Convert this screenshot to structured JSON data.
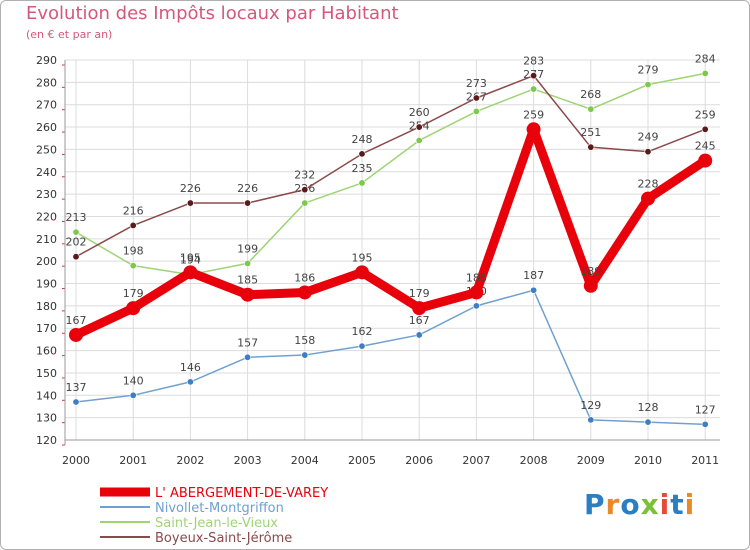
{
  "title": "Evolution des Impôts locaux par Habitant",
  "subtitle": "(en € et par an)",
  "logo_text": "Proxiti",
  "chart_data": {
    "type": "line",
    "title": "Evolution des Impôts locaux par Habitant",
    "subtitle": "(en € et par an)",
    "xlabel": "",
    "ylabel": "",
    "ylim": [
      120,
      290
    ],
    "ytick_step": 10,
    "grid": true,
    "categories": [
      "2000",
      "2001",
      "2002",
      "2003",
      "2004",
      "2005",
      "2006",
      "2007",
      "2008",
      "2009",
      "2010",
      "2011"
    ],
    "series": [
      {
        "name": "L' ABERGEMENT-DE-VAREY",
        "color": "#e8000b",
        "emphasis": true,
        "values": [
          167,
          179,
          195,
          185,
          186,
          195,
          179,
          186,
          259,
          189,
          228,
          245
        ]
      },
      {
        "name": "Nivollet-Montgriffon",
        "color": "#6fa0d0",
        "marker": "#3d7fc4",
        "emphasis": false,
        "values": [
          137,
          140,
          146,
          157,
          158,
          162,
          167,
          180,
          187,
          129,
          128,
          127
        ]
      },
      {
        "name": "Saint-Jean-le-Vieux",
        "color": "#9fd474",
        "marker": "#7ec850",
        "emphasis": false,
        "values": [
          213,
          198,
          194,
          199,
          226,
          235,
          254,
          267,
          277,
          268,
          279,
          284
        ]
      },
      {
        "name": "Boyeux-Saint-Jérôme",
        "color": "#8b4a4a",
        "marker": "#5a1a1a",
        "emphasis": false,
        "values": [
          202,
          216,
          226,
          226,
          232,
          248,
          260,
          273,
          283,
          251,
          249,
          259
        ]
      }
    ],
    "legend_position": "bottom-left"
  },
  "colors": {
    "title": "#d4587a",
    "logo": [
      "#2a7fc4",
      "#e8892a",
      "#2a7fc4",
      "#7bbf3a",
      "#e84a3a",
      "#2a7fc4",
      "#e8892a"
    ]
  }
}
